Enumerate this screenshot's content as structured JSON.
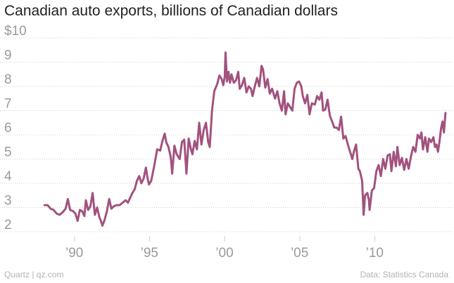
{
  "header": {
    "title": "Canadian auto exports, billions of Canadian dollars"
  },
  "footer": {
    "credit": "Quartz | qz.com",
    "source": "Data: Statistics Canada"
  },
  "colors": {
    "line": "#a2527f",
    "grid": "#d0d0d0",
    "ticks": "#9a9a9a"
  },
  "chart_data": {
    "type": "line",
    "title": "Canadian auto exports, billions of Canadian dollars",
    "xlabel": "",
    "ylabel": "",
    "ylim": [
      2,
      10
    ],
    "xlim": [
      1987,
      2014.8
    ],
    "y_ticks": [
      2,
      3,
      4,
      5,
      6,
      7,
      8,
      9,
      10
    ],
    "y_tick_labels": [
      "2",
      "3",
      "4",
      "5",
      "6",
      "7",
      "8",
      "9",
      "$10"
    ],
    "x_ticks": [
      1990,
      1995,
      2000,
      2005,
      2010
    ],
    "x_tick_labels": [
      "’90",
      "’95",
      "’00",
      "’05",
      "’10"
    ],
    "grid": true,
    "series": [
      {
        "values": [
          [
            1988.0,
            3.1
          ],
          [
            1988.2,
            3.1
          ],
          [
            1988.4,
            2.95
          ],
          [
            1988.6,
            2.9
          ],
          [
            1988.8,
            2.75
          ],
          [
            1989.0,
            2.7
          ],
          [
            1989.2,
            2.8
          ],
          [
            1989.4,
            2.95
          ],
          [
            1989.55,
            3.35
          ],
          [
            1989.7,
            2.9
          ],
          [
            1989.9,
            2.85
          ],
          [
            1990.05,
            2.75
          ],
          [
            1990.2,
            2.45
          ],
          [
            1990.35,
            2.9
          ],
          [
            1990.5,
            2.85
          ],
          [
            1990.65,
            2.65
          ],
          [
            1990.75,
            3.3
          ],
          [
            1990.9,
            2.9
          ],
          [
            1991.05,
            3.05
          ],
          [
            1991.2,
            3.6
          ],
          [
            1991.35,
            2.7
          ],
          [
            1991.5,
            3.0
          ],
          [
            1991.65,
            2.6
          ],
          [
            1991.75,
            2.45
          ],
          [
            1991.85,
            2.25
          ],
          [
            1992.0,
            2.5
          ],
          [
            1992.15,
            2.85
          ],
          [
            1992.3,
            3.35
          ],
          [
            1992.45,
            2.95
          ],
          [
            1992.6,
            3.05
          ],
          [
            1992.8,
            3.1
          ],
          [
            1993.0,
            3.1
          ],
          [
            1993.2,
            3.2
          ],
          [
            1993.4,
            3.3
          ],
          [
            1993.55,
            3.2
          ],
          [
            1993.7,
            3.4
          ],
          [
            1993.85,
            3.6
          ],
          [
            1994.0,
            3.75
          ],
          [
            1994.15,
            4.1
          ],
          [
            1994.3,
            4.3
          ],
          [
            1994.45,
            4.0
          ],
          [
            1994.6,
            4.2
          ],
          [
            1994.75,
            4.65
          ],
          [
            1994.85,
            4.25
          ],
          [
            1994.95,
            3.95
          ],
          [
            1995.1,
            4.1
          ],
          [
            1995.3,
            4.7
          ],
          [
            1995.5,
            5.4
          ],
          [
            1995.7,
            5.35
          ],
          [
            1995.85,
            5.75
          ],
          [
            1996.0,
            6.05
          ],
          [
            1996.1,
            5.7
          ],
          [
            1996.25,
            5.5
          ],
          [
            1996.4,
            5.1
          ],
          [
            1996.5,
            4.4
          ],
          [
            1996.65,
            5.55
          ],
          [
            1996.8,
            5.2
          ],
          [
            1997.0,
            5.0
          ],
          [
            1997.15,
            5.7
          ],
          [
            1997.3,
            5.8
          ],
          [
            1997.45,
            4.4
          ],
          [
            1997.6,
            5.85
          ],
          [
            1997.75,
            5.4
          ],
          [
            1997.85,
            5.2
          ],
          [
            1998.0,
            5.75
          ],
          [
            1998.15,
            5.4
          ],
          [
            1998.3,
            6.5
          ],
          [
            1998.45,
            5.6
          ],
          [
            1998.6,
            6.2
          ],
          [
            1998.75,
            6.5
          ],
          [
            1998.9,
            5.7
          ],
          [
            1999.0,
            5.5
          ],
          [
            1999.15,
            7.0
          ],
          [
            1999.3,
            7.8
          ],
          [
            1999.5,
            8.1
          ],
          [
            1999.65,
            8.45
          ],
          [
            1999.8,
            8.3
          ],
          [
            1999.9,
            8.05
          ],
          [
            2000.0,
            8.4
          ],
          [
            2000.05,
            9.4
          ],
          [
            2000.15,
            8.2
          ],
          [
            2000.25,
            8.6
          ],
          [
            2000.35,
            8.15
          ],
          [
            2000.45,
            8.5
          ],
          [
            2000.6,
            8.15
          ],
          [
            2000.75,
            8.25
          ],
          [
            2000.9,
            8.6
          ],
          [
            2001.0,
            7.9
          ],
          [
            2001.15,
            8.05
          ],
          [
            2001.3,
            8.35
          ],
          [
            2001.45,
            7.75
          ],
          [
            2001.6,
            8.0
          ],
          [
            2001.75,
            7.9
          ],
          [
            2001.85,
            7.6
          ],
          [
            2002.0,
            8.0
          ],
          [
            2002.15,
            8.35
          ],
          [
            2002.3,
            8.0
          ],
          [
            2002.45,
            8.85
          ],
          [
            2002.55,
            8.7
          ],
          [
            2002.7,
            7.95
          ],
          [
            2002.85,
            8.3
          ],
          [
            2003.0,
            7.7
          ],
          [
            2003.15,
            7.9
          ],
          [
            2003.35,
            7.5
          ],
          [
            2003.5,
            7.8
          ],
          [
            2003.65,
            7.3
          ],
          [
            2003.8,
            7.0
          ],
          [
            2003.95,
            7.8
          ],
          [
            2004.05,
            6.85
          ],
          [
            2004.2,
            7.3
          ],
          [
            2004.35,
            7.15
          ],
          [
            2004.5,
            7.0
          ],
          [
            2004.65,
            7.9
          ],
          [
            2004.8,
            8.15
          ],
          [
            2004.95,
            8.2
          ],
          [
            2005.1,
            8.0
          ],
          [
            2005.2,
            7.6
          ],
          [
            2005.35,
            7.3
          ],
          [
            2005.5,
            7.65
          ],
          [
            2005.65,
            6.85
          ],
          [
            2005.8,
            7.3
          ],
          [
            2006.0,
            7.25
          ],
          [
            2006.15,
            7.6
          ],
          [
            2006.3,
            7.45
          ],
          [
            2006.45,
            7.75
          ],
          [
            2006.55,
            7.0
          ],
          [
            2006.7,
            7.05
          ],
          [
            2006.85,
            7.45
          ],
          [
            2007.0,
            6.8
          ],
          [
            2007.15,
            6.55
          ],
          [
            2007.3,
            6.3
          ],
          [
            2007.45,
            6.3
          ],
          [
            2007.6,
            6.2
          ],
          [
            2007.75,
            6.75
          ],
          [
            2007.9,
            5.85
          ],
          [
            2008.05,
            5.95
          ],
          [
            2008.2,
            5.6
          ],
          [
            2008.35,
            5.3
          ],
          [
            2008.5,
            5.0
          ],
          [
            2008.6,
            5.3
          ],
          [
            2008.75,
            5.6
          ],
          [
            2008.9,
            4.6
          ],
          [
            2009.0,
            4.5
          ],
          [
            2009.15,
            4.1
          ],
          [
            2009.25,
            2.7
          ],
          [
            2009.35,
            3.5
          ],
          [
            2009.5,
            3.6
          ],
          [
            2009.6,
            3.3
          ],
          [
            2009.65,
            2.9
          ],
          [
            2009.8,
            3.7
          ],
          [
            2009.95,
            3.8
          ],
          [
            2010.1,
            4.5
          ],
          [
            2010.25,
            4.75
          ],
          [
            2010.4,
            4.3
          ],
          [
            2010.55,
            5.0
          ],
          [
            2010.7,
            4.6
          ],
          [
            2010.85,
            5.15
          ],
          [
            2011.0,
            5.2
          ],
          [
            2011.1,
            4.5
          ],
          [
            2011.25,
            5.3
          ],
          [
            2011.4,
            4.7
          ],
          [
            2011.5,
            5.5
          ],
          [
            2011.65,
            4.75
          ],
          [
            2011.8,
            5.05
          ],
          [
            2011.95,
            4.55
          ],
          [
            2012.1,
            5.0
          ],
          [
            2012.25,
            4.6
          ],
          [
            2012.4,
            5.1
          ],
          [
            2012.55,
            5.5
          ],
          [
            2012.7,
            5.3
          ],
          [
            2012.85,
            6.0
          ],
          [
            2013.0,
            5.85
          ],
          [
            2013.1,
            6.1
          ],
          [
            2013.2,
            5.4
          ],
          [
            2013.35,
            5.9
          ],
          [
            2013.5,
            5.3
          ],
          [
            2013.6,
            5.85
          ],
          [
            2013.75,
            5.7
          ],
          [
            2013.9,
            5.9
          ],
          [
            2014.0,
            5.5
          ],
          [
            2014.1,
            5.6
          ],
          [
            2014.2,
            5.3
          ],
          [
            2014.3,
            5.7
          ],
          [
            2014.4,
            6.25
          ],
          [
            2014.5,
            6.55
          ],
          [
            2014.6,
            6.1
          ],
          [
            2014.7,
            6.9
          ]
        ]
      }
    ]
  }
}
